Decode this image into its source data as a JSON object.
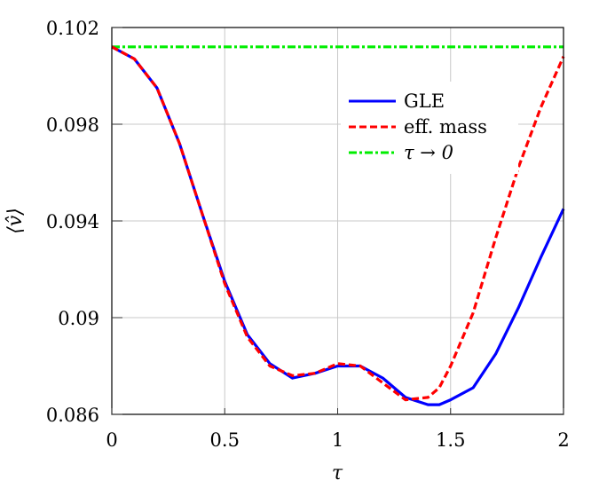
{
  "chart_data": {
    "type": "line",
    "title": "",
    "xlabel": "τ",
    "ylabel": "⟨v̂⟩",
    "xlim": [
      0,
      2
    ],
    "ylim": [
      0.086,
      0.102
    ],
    "xticks": [
      "0",
      "0.5",
      "1",
      "1.5",
      "2"
    ],
    "yticks": [
      "0.086",
      "0.09",
      "0.094",
      "0.098",
      "0.102"
    ],
    "grid": true,
    "legend_position": "upper right (inside)",
    "x": [
      0,
      0.1,
      0.2,
      0.3,
      0.4,
      0.5,
      0.6,
      0.7,
      0.8,
      0.9,
      1.0,
      1.1,
      1.2,
      1.3,
      1.4,
      1.45,
      1.5,
      1.6,
      1.7,
      1.8,
      1.9,
      2.0
    ],
    "series": [
      {
        "name": "GLE",
        "color": "#0000ff",
        "style": "solid",
        "values": [
          0.1012,
          0.1007,
          0.0995,
          0.0972,
          0.0943,
          0.0915,
          0.0893,
          0.0881,
          0.0875,
          0.0877,
          0.088,
          0.088,
          0.0875,
          0.0867,
          0.0864,
          0.0864,
          0.0866,
          0.0871,
          0.0885,
          0.0904,
          0.0925,
          0.0945
        ]
      },
      {
        "name": "eff. mass",
        "color": "#ff0000",
        "style": "dashed",
        "values": [
          0.1012,
          0.1007,
          0.0995,
          0.0972,
          0.0943,
          0.0914,
          0.0892,
          0.088,
          0.0876,
          0.0877,
          0.0881,
          0.088,
          0.0873,
          0.0866,
          0.0867,
          0.0871,
          0.088,
          0.0902,
          0.0933,
          0.0962,
          0.0987,
          0.1008
        ]
      },
      {
        "name": "τ → 0",
        "color": "#00ee00",
        "style": "dash-dot",
        "values": [
          0.1012,
          0.1012,
          0.1012,
          0.1012,
          0.1012,
          0.1012,
          0.1012,
          0.1012,
          0.1012,
          0.1012,
          0.1012,
          0.1012,
          0.1012,
          0.1012,
          0.1012,
          0.1012,
          0.1012,
          0.1012,
          0.1012,
          0.1012,
          0.1012,
          0.1012
        ]
      }
    ]
  },
  "legend": {
    "items": [
      {
        "label": "GLE"
      },
      {
        "label": "eff. mass"
      },
      {
        "label": "τ → 0"
      }
    ]
  },
  "axes": {
    "xlabel": "τ",
    "ylabel": "⟨v̂⟩"
  }
}
